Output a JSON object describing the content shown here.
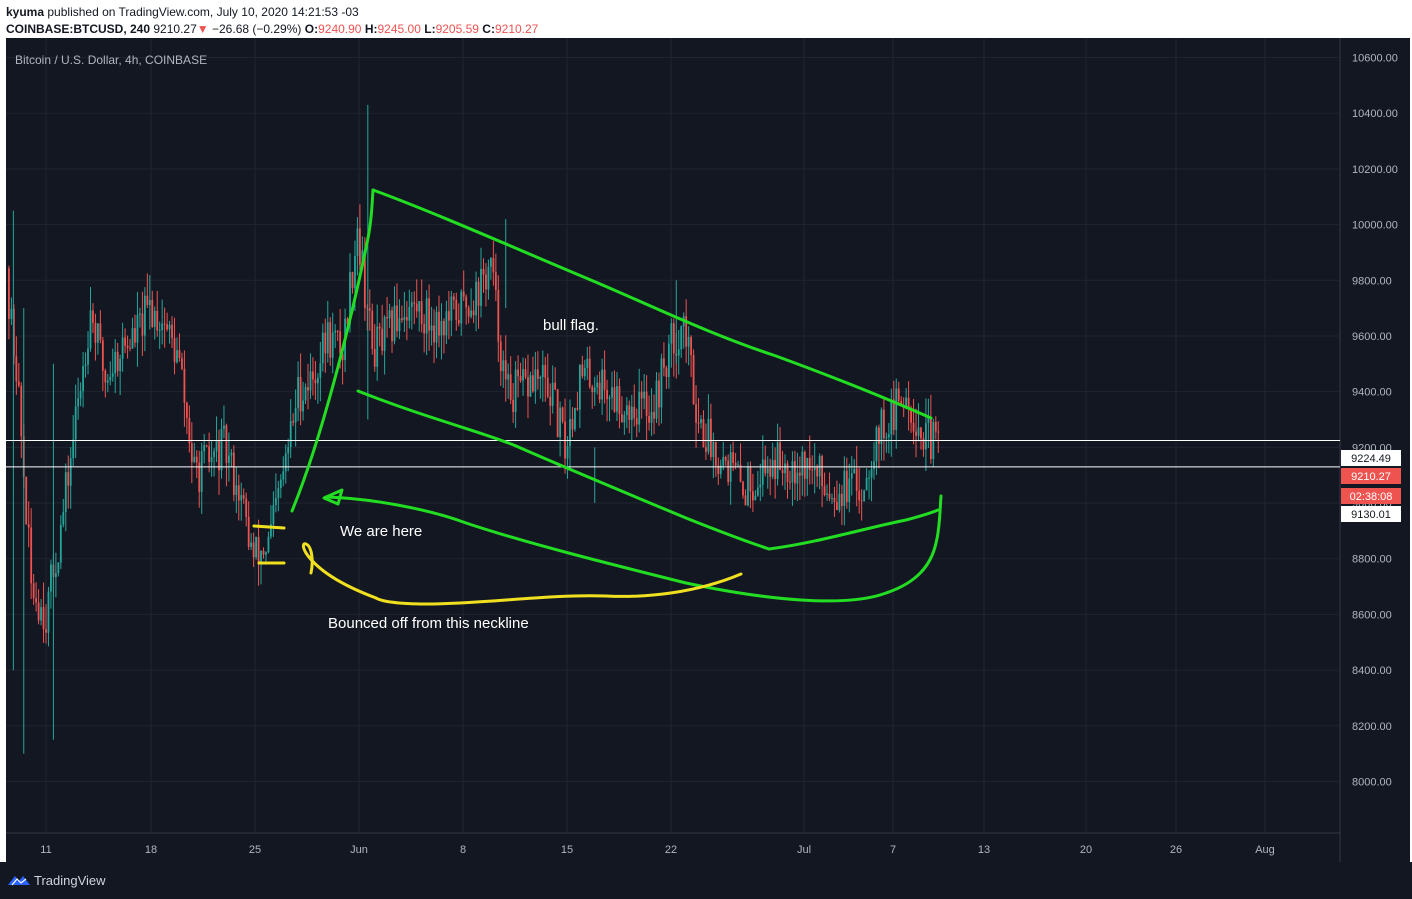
{
  "header": {
    "author": "kyuma",
    "published_text": "published on TradingView.com, July 10, 2020 14:21:53 -03",
    "symbol": "COINBASE:BTCUSD, 240",
    "last": "9210.27",
    "change_arrow": "▼",
    "change": "−26.68 (−0.29%)",
    "o_label": "O:",
    "o_val": "9240.90",
    "h_label": "H:",
    "h_val": "9245.00",
    "l_label": "L:",
    "l_val": "9205.59",
    "c_label": "C:",
    "c_val": "9210.27"
  },
  "footer": {
    "brand": "TradingView",
    "icon": "tradingview-logo-icon"
  },
  "colors": {
    "background": "#131722",
    "grid": "#1f2430",
    "up": "#26a69a",
    "down": "#ef5350",
    "green_annotation": "#22dd22",
    "yellow_annotation": "#f0e020",
    "text": "#b2b5be"
  },
  "chart_data": {
    "type": "candlestick",
    "title": "Bitcoin / U.S. Dollar, 4h, COINBASE",
    "x_ticks": [
      "11",
      "18",
      "25",
      "Jun",
      "8",
      "15",
      "22",
      "Jul",
      "7",
      "13",
      "20",
      "26",
      "Aug"
    ],
    "y_ticks": [
      8000,
      8200,
      8400,
      8600,
      8800,
      9000,
      9200,
      9400,
      9600,
      9800,
      10000,
      10200,
      10400,
      10600
    ],
    "ylim": [
      7900,
      10700
    ],
    "grid": true,
    "price_labels": [
      {
        "label": "9224.49",
        "value": 9224.49,
        "style": "white"
      },
      {
        "label": "9210.27",
        "value": 9210.27,
        "style": "red"
      },
      {
        "label": "02:38:08",
        "value": 9144,
        "style": "red"
      },
      {
        "label": "9130.01",
        "value": 9130.01,
        "style": "white"
      }
    ],
    "horizontal_lines": [
      9224.49,
      9130.01
    ],
    "series_anchors": [
      [
        "May 8",
        9900
      ],
      [
        "May 9",
        9500
      ],
      [
        "May 10",
        8700
      ],
      [
        "May 11",
        8600
      ],
      [
        "May 12",
        8900
      ],
      [
        "May 13",
        9300
      ],
      [
        "May 14",
        9700
      ],
      [
        "May 15",
        9450
      ],
      [
        "May 16",
        9550
      ],
      [
        "May 17",
        9600
      ],
      [
        "May 18",
        9700
      ],
      [
        "May 19",
        9650
      ],
      [
        "May 20",
        9500
      ],
      [
        "May 21",
        9100
      ],
      [
        "May 22",
        9150
      ],
      [
        "May 23",
        9200
      ],
      [
        "May 24",
        9050
      ],
      [
        "May 25",
        8800
      ],
      [
        "May 26",
        8850
      ],
      [
        "May 27",
        9100
      ],
      [
        "May 28",
        9400
      ],
      [
        "May 29",
        9450
      ],
      [
        "May 30",
        9600
      ],
      [
        "May 31",
        9550
      ],
      [
        "Jun 1",
        10000
      ],
      [
        "Jun 2",
        9550
      ],
      [
        "Jun 3",
        9600
      ],
      [
        "Jun 4",
        9700
      ],
      [
        "Jun 5",
        9700
      ],
      [
        "Jun 6",
        9650
      ],
      [
        "Jun 7",
        9650
      ],
      [
        "Jun 8",
        9700
      ],
      [
        "Jun 9",
        9750
      ],
      [
        "Jun 10",
        9850
      ],
      [
        "Jun 11",
        9400
      ],
      [
        "Jun 12",
        9400
      ],
      [
        "Jun 13",
        9450
      ],
      [
        "Jun 14",
        9400
      ],
      [
        "Jun 15",
        9200
      ],
      [
        "Jun 16",
        9450
      ],
      [
        "Jun 17",
        9450
      ],
      [
        "Jun 18",
        9400
      ],
      [
        "Jun 19",
        9350
      ],
      [
        "Jun 20",
        9350
      ],
      [
        "Jun 21",
        9350
      ],
      [
        "Jun 22",
        9550
      ],
      [
        "Jun 23",
        9650
      ],
      [
        "Jun 24",
        9300
      ],
      [
        "Jun 25",
        9200
      ],
      [
        "Jun 26",
        9150
      ],
      [
        "Jun 27",
        9050
      ],
      [
        "Jun 28",
        9100
      ],
      [
        "Jun 29",
        9150
      ],
      [
        "Jun 30",
        9150
      ],
      [
        "Jul 1",
        9150
      ],
      [
        "Jul 2",
        9100
      ],
      [
        "Jul 3",
        9050
      ],
      [
        "Jul 4",
        9050
      ],
      [
        "Jul 5",
        9050
      ],
      [
        "Jul 6",
        9250
      ],
      [
        "Jul 7",
        9300
      ],
      [
        "Jul 8",
        9400
      ],
      [
        "Jul 9",
        9250
      ],
      [
        "Jul 10",
        9210
      ]
    ],
    "annotations": [
      {
        "text": "bull flag.",
        "kind": "label"
      },
      {
        "text": "We are here",
        "kind": "label"
      },
      {
        "text": "Bounced off from this neckline",
        "kind": "label"
      }
    ]
  }
}
